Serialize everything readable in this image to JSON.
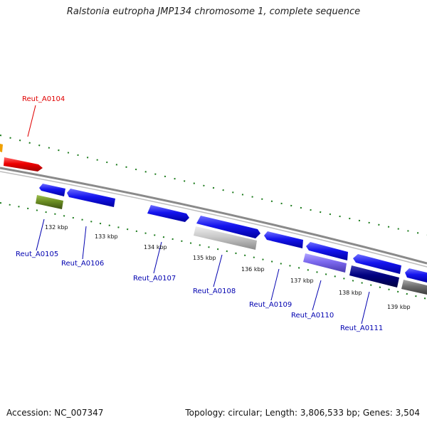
{
  "title": "Ralstonia eutropha JMP134 chromosome 1, complete sequence",
  "footer": {
    "accession": "Accession: NC_007347",
    "stats": "Topology: circular; Length: 3,806,533 bp; Genes: 3,504"
  },
  "colors": {
    "highlight": "#e00000",
    "gene": "#1010e8",
    "gene_label": "#0000b0",
    "tick": "#1a7a1a",
    "backbone": "#808080"
  },
  "scale_labels": [
    "132 kbp",
    "133 kbp",
    "134 kbp",
    "135 kbp",
    "136 kbp",
    "137 kbp",
    "138 kbp",
    "139 kbp"
  ],
  "genes": [
    {
      "id": "Reut_A0104",
      "color": "#e00000"
    },
    {
      "id": "Reut_A0105",
      "color": "#6b8e23"
    },
    {
      "id": "Reut_A0106",
      "color": "#1010e8"
    },
    {
      "id": "Reut_A0107",
      "color": "#1010e8"
    },
    {
      "id": "Reut_A0108",
      "color": "#c8c8c8"
    },
    {
      "id": "Reut_A0109",
      "color": "#1010e8"
    },
    {
      "id": "Reut_A0110",
      "color": "#7b68ee"
    },
    {
      "id": "Reut_A0111",
      "color": "#000080"
    }
  ]
}
